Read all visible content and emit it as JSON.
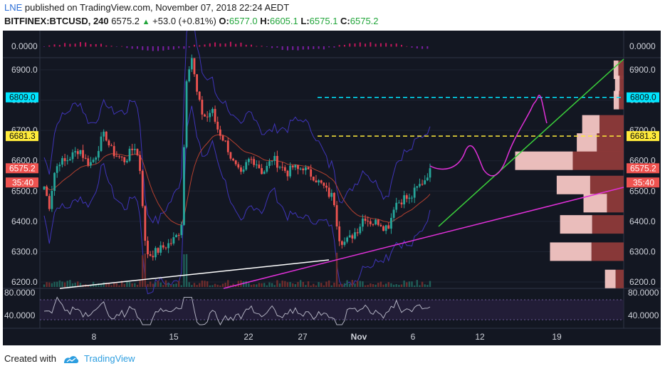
{
  "header": {
    "author": "LNE",
    "published": "published on TradingView.com, November 07, 2018 22:24 AEDT",
    "symbol": "BITFINEX:BTCUSD, 240",
    "last": "6575.2",
    "change": "+53.0 (+0.81%)",
    "o_label": "O:",
    "o_val": "6577.0",
    "h_label": "H:",
    "h_val": "6605.1",
    "l_label": "L:",
    "l_val": "6575.1",
    "c_label": "C:",
    "c_val": "6575.2"
  },
  "footer": {
    "created_with": "Created with",
    "brand": "TradingView"
  },
  "colors": {
    "background": "#131722",
    "up": "#26a69a",
    "down": "#ef5350",
    "cyan": "#00e5ff",
    "yellow": "#ffeb3b",
    "green": "#3bd13b",
    "magenta": "#e030d8",
    "white": "#ffffff",
    "bb": "#3f34b8",
    "rsi": "#b0b0c0"
  },
  "top_indicator": {
    "label": "0.0000"
  },
  "price_axis": {
    "ticks": [
      "6900.0",
      "6800.0",
      "6700.0",
      "6600.0",
      "6500.0",
      "6400.0",
      "6300.0",
      "6200.0"
    ],
    "badges": {
      "cyan": "6809.0",
      "yellow": "6681.3",
      "current": "6575.2",
      "countdown": "35:40"
    }
  },
  "rsi": {
    "ticks": [
      "80.0000",
      "40.0000"
    ]
  },
  "time_axis": {
    "labels": [
      "8",
      "15",
      "22",
      "27",
      "Nov",
      "6",
      "12",
      "19"
    ]
  },
  "chart_data": {
    "type": "candlestick",
    "symbol": "BITFINEX:BTCUSD",
    "timeframe": "240",
    "ylim": [
      6170,
      6950
    ],
    "hlines": [
      {
        "value": 6809.0,
        "color": "cyan",
        "style": "dashed"
      },
      {
        "value": 6681.3,
        "color": "yellow",
        "style": "dashed"
      }
    ],
    "close_path": [
      6515,
      6450,
      6560,
      6600,
      6595,
      6610,
      6625,
      6640,
      6605,
      6590,
      6610,
      6660,
      6690,
      6640,
      6620,
      6610,
      6600,
      6630,
      6650,
      6560,
      6300,
      6290,
      6300,
      6310,
      6320,
      6330,
      6350,
      6380,
      6870,
      6950,
      6830,
      6760,
      6740,
      6770,
      6710,
      6680,
      6650,
      6600,
      6570,
      6545,
      6600,
      6605,
      6590,
      6560,
      6580,
      6610,
      6590,
      6575,
      6560,
      6580,
      6570,
      6580,
      6560,
      6550,
      6530,
      6515,
      6490,
      6480,
      6350,
      6330,
      6340,
      6360,
      6380,
      6420,
      6400,
      6395,
      6400,
      6380,
      6390,
      6460,
      6465,
      6480,
      6470,
      6500,
      6520,
      6540,
      6575
    ],
    "volume_profile": [
      {
        "price": 6900,
        "total": 15,
        "buy": 8
      },
      {
        "price": 6850,
        "total": 13,
        "buy": 6
      },
      {
        "price": 6800,
        "total": 15,
        "buy": 7
      },
      {
        "price": 6720,
        "total": 62,
        "buy": 36
      },
      {
        "price": 6660,
        "total": 70,
        "buy": 40
      },
      {
        "price": 6600,
        "total": 162,
        "buy": 76
      },
      {
        "price": 6520,
        "total": 100,
        "buy": 50
      },
      {
        "price": 6460,
        "total": 60,
        "buy": 25
      },
      {
        "price": 6390,
        "total": 95,
        "buy": 47
      },
      {
        "price": 6300,
        "total": 110,
        "buy": 48
      },
      {
        "price": 6210,
        "total": 28,
        "buy": 12
      }
    ]
  }
}
